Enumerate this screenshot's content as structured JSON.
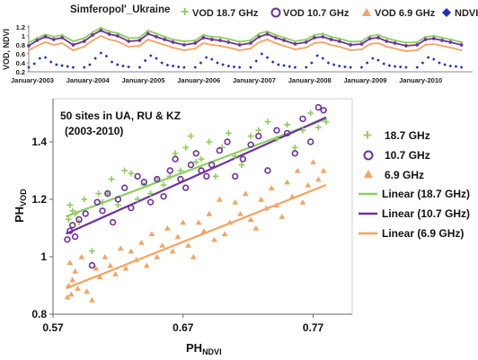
{
  "chart_data": [
    {
      "type": "line",
      "title": "Simferopol'_Ukraine",
      "ylabel": "VOD, NDVI",
      "ylim": [
        0.2,
        1.2
      ],
      "yticks": [
        0.2,
        0.4,
        0.6,
        0.8,
        1.0,
        1.2
      ],
      "xlim": [
        2003.0,
        2011.0
      ],
      "xticks": [
        {
          "x": 2003.0,
          "label": "January-2003"
        },
        {
          "x": 2004.0,
          "label": "January-2004"
        },
        {
          "x": 2005.0,
          "label": "January-2005"
        },
        {
          "x": 2006.0,
          "label": "January-2006"
        },
        {
          "x": 2007.0,
          "label": "January-2007"
        },
        {
          "x": 2008.0,
          "label": "January-2008"
        },
        {
          "x": 2009.0,
          "label": "January-2009"
        },
        {
          "x": 2010.0,
          "label": "January-2010"
        }
      ],
      "legend": [
        "VOD 18.7 GHz",
        "VOD 10.7 GHz",
        "VOD 6.9 GHz",
        "NDVI"
      ],
      "legend_position": "top",
      "series": [
        {
          "name": "VOD 18.7 GHz",
          "color": "#8ccf5a",
          "marker": "plus",
          "x": [
            2003.0,
            2003.15,
            2003.3,
            2003.45,
            2003.6,
            2003.8,
            2004.0,
            2004.15,
            2004.3,
            2004.45,
            2004.6,
            2004.8,
            2005.0,
            2005.15,
            2005.3,
            2005.45,
            2005.6,
            2005.8,
            2006.0,
            2006.15,
            2006.3,
            2006.45,
            2006.6,
            2006.8,
            2007.0,
            2007.15,
            2007.3,
            2007.45,
            2007.6,
            2007.8,
            2008.0,
            2008.15,
            2008.3,
            2008.45,
            2008.6,
            2008.8,
            2009.0,
            2009.15,
            2009.3,
            2009.45,
            2009.6,
            2009.8,
            2010.0,
            2010.15,
            2010.3,
            2010.45,
            2010.6,
            2010.8
          ],
          "y": [
            0.85,
            0.95,
            1.03,
            0.98,
            1.02,
            0.88,
            0.95,
            1.08,
            1.18,
            1.1,
            1.06,
            0.95,
            0.96,
            1.12,
            1.05,
            0.98,
            0.92,
            0.88,
            0.9,
            1.02,
            0.98,
            0.97,
            0.93,
            0.87,
            0.9,
            1.05,
            1.1,
            1.02,
            0.96,
            0.88,
            0.92,
            1.02,
            1.05,
            0.98,
            0.94,
            0.87,
            0.88,
            1.0,
            1.02,
            0.95,
            0.9,
            0.85,
            0.86,
            0.98,
            1.0,
            0.96,
            0.92,
            0.86
          ]
        },
        {
          "name": "VOD 10.7 GHz",
          "color": "#7030a0",
          "marker": "circle",
          "x": [
            2003.0,
            2003.15,
            2003.3,
            2003.45,
            2003.6,
            2003.8,
            2004.0,
            2004.15,
            2004.3,
            2004.45,
            2004.6,
            2004.8,
            2005.0,
            2005.15,
            2005.3,
            2005.45,
            2005.6,
            2005.8,
            2006.0,
            2006.15,
            2006.3,
            2006.45,
            2006.6,
            2006.8,
            2007.0,
            2007.15,
            2007.3,
            2007.45,
            2007.6,
            2007.8,
            2008.0,
            2008.15,
            2008.3,
            2008.45,
            2008.6,
            2008.8,
            2009.0,
            2009.15,
            2009.3,
            2009.45,
            2009.6,
            2009.8,
            2010.0,
            2010.15,
            2010.3,
            2010.45,
            2010.6,
            2010.8
          ],
          "y": [
            0.78,
            0.9,
            0.98,
            0.92,
            0.96,
            0.8,
            0.88,
            1.02,
            1.12,
            1.04,
            1.0,
            0.88,
            0.9,
            1.05,
            0.98,
            0.92,
            0.86,
            0.8,
            0.84,
            0.96,
            0.92,
            0.9,
            0.86,
            0.8,
            0.84,
            0.98,
            1.04,
            0.96,
            0.9,
            0.82,
            0.86,
            0.96,
            0.98,
            0.92,
            0.88,
            0.8,
            0.82,
            0.94,
            0.96,
            0.88,
            0.84,
            0.78,
            0.8,
            0.92,
            0.94,
            0.9,
            0.86,
            0.8
          ]
        },
        {
          "name": "VOD 6.9 GHz",
          "color": "#f4a460",
          "marker": "triangle",
          "x": [
            2003.0,
            2003.15,
            2003.3,
            2003.45,
            2003.6,
            2003.8,
            2004.0,
            2004.15,
            2004.3,
            2004.45,
            2004.6,
            2004.8,
            2005.0,
            2005.15,
            2005.3,
            2005.45,
            2005.6,
            2005.8,
            2006.0,
            2006.15,
            2006.3,
            2006.45,
            2006.6,
            2006.8,
            2007.0,
            2007.15,
            2007.3,
            2007.45,
            2007.6,
            2007.8,
            2008.0,
            2008.15,
            2008.3,
            2008.45,
            2008.6,
            2008.8,
            2009.0,
            2009.15,
            2009.3,
            2009.45,
            2009.6,
            2009.8,
            2010.0,
            2010.15,
            2010.3,
            2010.45,
            2010.6,
            2010.8
          ],
          "y": [
            0.68,
            0.78,
            0.86,
            0.8,
            0.84,
            0.68,
            0.76,
            0.9,
            1.0,
            0.92,
            0.88,
            0.76,
            0.78,
            0.92,
            0.86,
            0.8,
            0.74,
            0.68,
            0.72,
            0.84,
            0.8,
            0.78,
            0.74,
            0.68,
            0.72,
            0.86,
            0.92,
            0.84,
            0.78,
            0.7,
            0.74,
            0.84,
            0.86,
            0.8,
            0.76,
            0.68,
            0.7,
            0.82,
            0.84,
            0.76,
            0.72,
            0.66,
            0.68,
            0.8,
            0.82,
            0.78,
            0.74,
            0.68
          ]
        },
        {
          "name": "NDVI",
          "color": "#1f2fbf",
          "marker": "diamond",
          "x": [
            2003.0,
            2003.1,
            2003.2,
            2003.3,
            2003.4,
            2003.5,
            2003.6,
            2003.7,
            2003.8,
            2004.0,
            2004.1,
            2004.2,
            2004.3,
            2004.4,
            2004.5,
            2004.6,
            2004.7,
            2004.8,
            2005.0,
            2005.1,
            2005.2,
            2005.3,
            2005.4,
            2005.5,
            2005.6,
            2005.7,
            2005.8,
            2006.0,
            2006.1,
            2006.2,
            2006.3,
            2006.4,
            2006.5,
            2006.6,
            2006.7,
            2006.8,
            2007.0,
            2007.1,
            2007.2,
            2007.3,
            2007.4,
            2007.5,
            2007.6,
            2007.7,
            2007.8,
            2008.0,
            2008.1,
            2008.2,
            2008.3,
            2008.4,
            2008.5,
            2008.6,
            2008.7,
            2008.8,
            2009.0,
            2009.1,
            2009.2,
            2009.3,
            2009.4,
            2009.5,
            2009.6,
            2009.7,
            2009.8,
            2010.0,
            2010.1,
            2010.2,
            2010.3,
            2010.4,
            2010.5,
            2010.6,
            2010.7,
            2010.8
          ],
          "y": [
            0.3,
            0.38,
            0.5,
            0.52,
            0.42,
            0.36,
            0.34,
            0.32,
            0.3,
            0.3,
            0.36,
            0.5,
            0.62,
            0.55,
            0.42,
            0.36,
            0.33,
            0.31,
            0.3,
            0.45,
            0.56,
            0.5,
            0.4,
            0.35,
            0.33,
            0.31,
            0.3,
            0.3,
            0.4,
            0.52,
            0.48,
            0.4,
            0.36,
            0.33,
            0.31,
            0.3,
            0.3,
            0.44,
            0.6,
            0.52,
            0.42,
            0.36,
            0.34,
            0.32,
            0.3,
            0.3,
            0.4,
            0.56,
            0.5,
            0.4,
            0.36,
            0.33,
            0.31,
            0.3,
            0.3,
            0.4,
            0.5,
            0.46,
            0.38,
            0.34,
            0.32,
            0.31,
            0.3,
            0.3,
            0.4,
            0.52,
            0.48,
            0.4,
            0.36,
            0.33,
            0.32,
            0.3
          ]
        }
      ]
    },
    {
      "type": "scatter",
      "annotation": "50 sites in UA, RU & KZ\n(2003-2010)",
      "xlabel": "PH",
      "xlabel_sub": "NDVI",
      "ylabel": "PH",
      "ylabel_sub": "VOD",
      "xlim": [
        0.57,
        0.8
      ],
      "ylim": [
        0.8,
        1.55
      ],
      "xticks": [
        0.57,
        0.67,
        0.77
      ],
      "xticklabels": [
        "0.57",
        "0.67",
        "0.77"
      ],
      "yticks": [
        0.8,
        1.0,
        1.2,
        1.4
      ],
      "yticklabels": [
        "0.8",
        "1",
        "1.2",
        "1.4"
      ],
      "grid": false,
      "legend_position": "right",
      "series": [
        {
          "name": "18.7 GHz",
          "color": "#8ccf5a",
          "marker": "plus",
          "x": [
            0.582,
            0.583,
            0.585,
            0.587,
            0.59,
            0.594,
            0.6,
            0.605,
            0.608,
            0.612,
            0.615,
            0.62,
            0.625,
            0.63,
            0.635,
            0.64,
            0.645,
            0.65,
            0.655,
            0.66,
            0.664,
            0.668,
            0.672,
            0.676,
            0.68,
            0.684,
            0.69,
            0.695,
            0.7,
            0.705,
            0.71,
            0.715,
            0.722,
            0.728,
            0.735,
            0.742,
            0.75,
            0.756,
            0.762,
            0.768,
            0.774,
            0.78
          ],
          "y": [
            1.13,
            1.18,
            1.16,
            1.15,
            1.12,
            1.2,
            1.02,
            1.22,
            1.19,
            1.22,
            1.27,
            1.18,
            1.3,
            1.29,
            1.2,
            1.25,
            1.22,
            1.27,
            1.25,
            1.28,
            1.36,
            1.3,
            1.38,
            1.42,
            1.33,
            1.34,
            1.4,
            1.28,
            1.38,
            1.43,
            1.35,
            1.32,
            1.42,
            1.44,
            1.47,
            1.41,
            1.46,
            1.38,
            1.44,
            1.5,
            1.45,
            1.47
          ]
        },
        {
          "name": "10.7 GHz",
          "color": "#7030a0",
          "marker": "circle",
          "x": [
            0.581,
            0.583,
            0.585,
            0.587,
            0.59,
            0.595,
            0.6,
            0.604,
            0.608,
            0.612,
            0.616,
            0.62,
            0.625,
            0.63,
            0.635,
            0.64,
            0.645,
            0.65,
            0.655,
            0.66,
            0.664,
            0.668,
            0.672,
            0.676,
            0.68,
            0.684,
            0.688,
            0.692,
            0.698,
            0.704,
            0.71,
            0.716,
            0.722,
            0.728,
            0.735,
            0.742,
            0.75,
            0.756,
            0.762,
            0.768,
            0.774,
            0.778
          ],
          "y": [
            1.06,
            1.09,
            1.11,
            1.07,
            1.13,
            1.15,
            0.97,
            1.19,
            1.16,
            1.22,
            1.12,
            1.2,
            1.24,
            1.17,
            1.28,
            1.26,
            1.19,
            1.27,
            1.21,
            1.3,
            1.34,
            1.27,
            1.24,
            1.32,
            1.36,
            1.3,
            1.28,
            1.32,
            1.37,
            1.4,
            1.28,
            1.34,
            1.39,
            1.42,
            1.3,
            1.44,
            1.43,
            1.36,
            1.48,
            1.4,
            1.52,
            1.51
          ]
        },
        {
          "name": "6.9 GHz",
          "color": "#f4a460",
          "marker": "triangle",
          "x": [
            0.581,
            0.582,
            0.583,
            0.584,
            0.585,
            0.587,
            0.589,
            0.592,
            0.596,
            0.6,
            0.603,
            0.606,
            0.61,
            0.614,
            0.618,
            0.622,
            0.626,
            0.63,
            0.634,
            0.638,
            0.642,
            0.646,
            0.65,
            0.654,
            0.658,
            0.662,
            0.666,
            0.67,
            0.674,
            0.678,
            0.682,
            0.686,
            0.69,
            0.694,
            0.698,
            0.702,
            0.706,
            0.71,
            0.714,
            0.718,
            0.722,
            0.726,
            0.73,
            0.734,
            0.738,
            0.742,
            0.746,
            0.75,
            0.754,
            0.758,
            0.762,
            0.766,
            0.77,
            0.774,
            0.778
          ],
          "y": [
            0.86,
            0.9,
            0.98,
            0.87,
            0.92,
            0.95,
            0.89,
            1.0,
            0.88,
            0.85,
            0.96,
            0.93,
            1.0,
            0.97,
            0.94,
            1.03,
            0.96,
            1.02,
            0.99,
            1.05,
            0.97,
            1.08,
            1.0,
            1.04,
            1.1,
            1.02,
            1.07,
            1.12,
            1.04,
            1.0,
            1.12,
            1.09,
            1.15,
            1.06,
            1.2,
            1.08,
            1.12,
            1.19,
            1.15,
            1.22,
            1.13,
            1.1,
            1.2,
            1.17,
            1.24,
            1.18,
            1.14,
            1.26,
            1.21,
            1.3,
            1.19,
            1.25,
            1.33,
            1.27,
            1.3
          ]
        }
      ],
      "trendlines": [
        {
          "name": "Linear (18.7 GHz)",
          "color": "#8ccf5a",
          "x": [
            0.58,
            0.78
          ],
          "y": [
            1.14,
            1.48
          ]
        },
        {
          "name": "Linear (10.7 GHz)",
          "color": "#7030a0",
          "x": [
            0.58,
            0.78
          ],
          "y": [
            1.08,
            1.485
          ]
        },
        {
          "name": "Linear (6.9 GHz)",
          "color": "#f4a460",
          "x": [
            0.58,
            0.78
          ],
          "y": [
            0.89,
            1.25
          ]
        }
      ]
    }
  ]
}
